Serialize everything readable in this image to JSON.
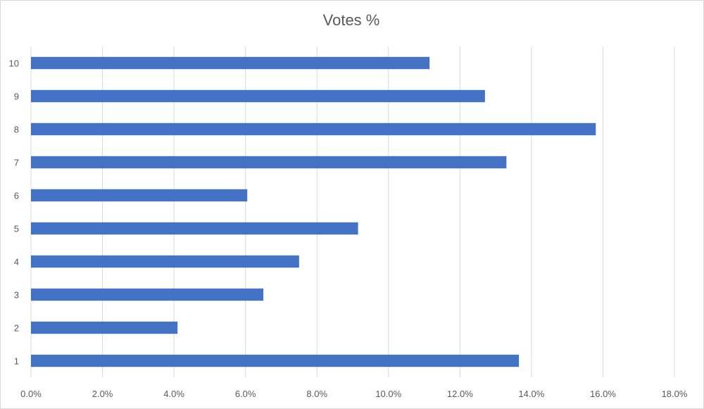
{
  "chart_data": {
    "type": "bar",
    "orientation": "horizontal",
    "title": "Votes %",
    "xlabel": "",
    "ylabel": "",
    "categories": [
      "1",
      "2",
      "3",
      "4",
      "5",
      "6",
      "7",
      "8",
      "9",
      "10"
    ],
    "values": [
      13.65,
      4.1,
      6.5,
      7.5,
      9.15,
      6.05,
      13.3,
      15.8,
      12.7,
      11.15
    ],
    "xlim": [
      0,
      18
    ],
    "xticks": [
      "0.0%",
      "2.0%",
      "4.0%",
      "6.0%",
      "8.0%",
      "10.0%",
      "12.0%",
      "14.0%",
      "16.0%",
      "18.0%"
    ],
    "grid": true,
    "legend": "none",
    "bar_color": "#4472C4"
  }
}
